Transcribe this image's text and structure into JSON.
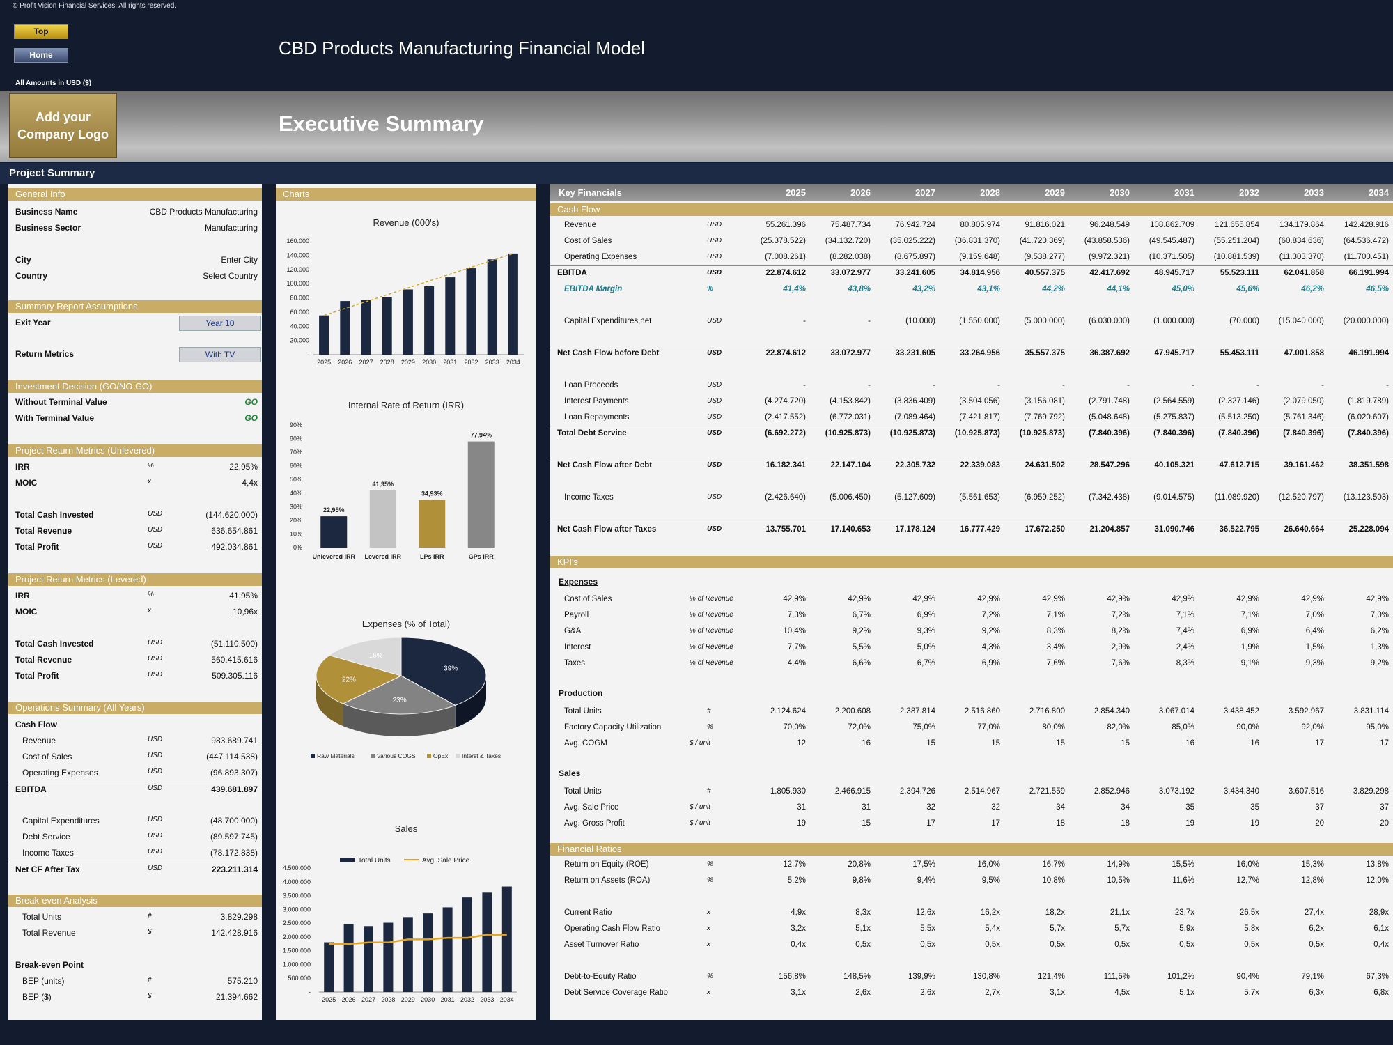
{
  "header": {
    "copyright": "© Profit Vision Financial Services. All rights reserved.",
    "top_btn": "Top",
    "home_btn": "Home",
    "model_title": "CBD Products Manufacturing Financial Model",
    "amounts": "All Amounts in  USD ($)",
    "logo": "Add your Company Logo",
    "exec_title": "Executive Summary",
    "project_summary": "Project Summary"
  },
  "general": {
    "title": "General Info",
    "rows": [
      {
        "label": "Business Name",
        "value": "CBD Products Manufacturing"
      },
      {
        "label": "Business Sector",
        "value": "Manufacturing"
      },
      {
        "label": "City",
        "value": "Enter City"
      },
      {
        "label": "Country",
        "value": "Select Country"
      }
    ]
  },
  "assump": {
    "title": "Summary  Report Assumptions",
    "exit_label": "Exit Year",
    "exit_value": "Year 10",
    "rm_label": "Return Metrics",
    "rm_value": "With TV"
  },
  "invest": {
    "title": "Investment Decision (GO/NO GO)",
    "rows": [
      {
        "label": "Without Terminal Value",
        "value": "GO"
      },
      {
        "label": "With Terminal Value",
        "value": "GO"
      }
    ]
  },
  "unlev": {
    "title": "Project Return Metrics (Unlevered)",
    "rows": [
      {
        "label": "IRR",
        "unit": "%",
        "value": "22,95%"
      },
      {
        "label": "MOIC",
        "unit": "x",
        "value": "4,4x"
      },
      {
        "label": "Total Cash Invested",
        "unit": "USD",
        "value": "(144.620.000)"
      },
      {
        "label": "Total Revenue",
        "unit": "USD",
        "value": "636.654.861"
      },
      {
        "label": "Total Profit",
        "unit": "USD",
        "value": "492.034.861"
      }
    ]
  },
  "lev": {
    "title": "Project Return Metrics (Levered)",
    "rows": [
      {
        "label": "IRR",
        "unit": "%",
        "value": "41,95%"
      },
      {
        "label": "MOIC",
        "unit": "x",
        "value": "10,96x"
      },
      {
        "label": "Total Cash Invested",
        "unit": "USD",
        "value": "(51.110.500)"
      },
      {
        "label": "Total Revenue",
        "unit": "USD",
        "value": "560.415.616"
      },
      {
        "label": "Total Profit",
        "unit": "USD",
        "value": "509.305.116"
      }
    ]
  },
  "ops": {
    "title": "Operations Summary (All Years)",
    "cashflow": "Cash Flow",
    "rows": [
      {
        "label": "Revenue",
        "unit": "USD",
        "value": "983.689.741"
      },
      {
        "label": "Cost of Sales",
        "unit": "USD",
        "value": "(447.114.538)"
      },
      {
        "label": "Operating Expenses",
        "unit": "USD",
        "value": "(96.893.307)"
      },
      {
        "label": "EBITDA",
        "unit": "USD",
        "value": "439.681.897"
      },
      {
        "label": "Capital Expenditures",
        "unit": "USD",
        "value": "(48.700.000)"
      },
      {
        "label": "Debt Service",
        "unit": "USD",
        "value": "(89.597.745)"
      },
      {
        "label": "Income Taxes",
        "unit": "USD",
        "value": "(78.172.838)"
      },
      {
        "label": "Net CF After Tax",
        "unit": "USD",
        "value": "223.211.314"
      }
    ]
  },
  "bea": {
    "title": "Break-even Analysis",
    "rows": [
      {
        "label": "Total Units",
        "unit": "#",
        "value": "3.829.298"
      },
      {
        "label": "Total Revenue",
        "unit": "$",
        "value": "142.428.916"
      }
    ],
    "bep_label": "Break-even Point",
    "bep": [
      {
        "label": "BEP (units)",
        "unit": "#",
        "value": "575.210"
      },
      {
        "label": "BEP ($)",
        "unit": "$",
        "value": "21.394.662"
      }
    ]
  },
  "charts": {
    "title": "Charts"
  },
  "chart_data": [
    {
      "type": "bar",
      "title": "Revenue (000's)",
      "categories": [
        "2025",
        "2026",
        "2027",
        "2028",
        "2029",
        "2030",
        "2031",
        "2032",
        "2033",
        "2034"
      ],
      "values": [
        55261,
        75488,
        76943,
        80806,
        91816,
        96249,
        108863,
        121656,
        134180,
        142429
      ],
      "y_ticks": [
        "160.000",
        "140.000",
        "120.000",
        "100.000",
        "80.000",
        "60.000",
        "40.000",
        "20.000",
        "-"
      ],
      "ylim": [
        0,
        160000
      ],
      "trendline": true,
      "color": "#1c2840"
    },
    {
      "type": "bar",
      "title": "Internal Rate of Return (IRR)",
      "categories": [
        "Unlevered IRR",
        "Levered IRR",
        "LPs IRR",
        "GPs IRR"
      ],
      "values": [
        22.95,
        41.95,
        34.93,
        77.94
      ],
      "labels": [
        "22,95%",
        "41,95%",
        "34,93%",
        "77,94%"
      ],
      "y_ticks": [
        "90%",
        "80%",
        "70%",
        "60%",
        "50%",
        "40%",
        "30%",
        "20%",
        "10%",
        "0%"
      ],
      "ylim": [
        0,
        90
      ],
      "colors": [
        "#1c2840",
        "#c3c3c3",
        "#b09139",
        "#878787"
      ]
    },
    {
      "type": "pie",
      "title": "Expenses (% of Total)",
      "values": [
        39,
        23,
        22,
        16
      ],
      "labels": [
        "39%",
        "23%",
        "22%",
        "16%"
      ],
      "legend": [
        "Raw Materials",
        "Various COGS",
        "OpEx",
        "Interst & Taxes"
      ],
      "colors": [
        "#1c2840",
        "#838383",
        "#b09139",
        "#d9d9d9"
      ]
    },
    {
      "type": "bar",
      "title": "Sales",
      "categories": [
        "2025",
        "2026",
        "2027",
        "2028",
        "2029",
        "2030",
        "2031",
        "2032",
        "2033",
        "2034"
      ],
      "series": [
        {
          "name": "Total Units",
          "values": [
            1805930,
            2466915,
            2394726,
            2514967,
            2721559,
            2852946,
            3073192,
            3434340,
            3607516,
            3829298
          ]
        },
        {
          "name": "Avg. Sale Price",
          "values": [
            31,
            31,
            32,
            32,
            34,
            34,
            35,
            35,
            37,
            37
          ]
        }
      ],
      "y_ticks": [
        "4.500.000",
        "4.000.000",
        "3.500.000",
        "3.000.000",
        "2.500.000",
        "2.000.000",
        "1.500.000",
        "1.000.000",
        "500.000",
        "-"
      ],
      "ylim": [
        0,
        4500000
      ]
    }
  ],
  "kf": {
    "title": "Key Financials",
    "years": [
      "2025",
      "2026",
      "2027",
      "2028",
      "2029",
      "2030",
      "2031",
      "2032",
      "2033",
      "2034"
    ],
    "cashflow_title": "Cash Flow",
    "kpi_title": "KPI's",
    "ratios_title": "Financial Ratios",
    "expenses_sub": "Expenses",
    "production_sub": "Production",
    "sales_sub": "Sales",
    "rows": [
      {
        "label": "Revenue",
        "unit": "USD",
        "vals": [
          "55.261.396",
          "75.487.734",
          "76.942.724",
          "80.805.974",
          "91.816.021",
          "96.248.549",
          "108.862.709",
          "121.655.854",
          "134.179.864",
          "142.428.916"
        ]
      },
      {
        "label": "Cost of Sales",
        "unit": "USD",
        "vals": [
          "(25.378.522)",
          "(34.132.720)",
          "(35.025.222)",
          "(36.831.370)",
          "(41.720.369)",
          "(43.858.536)",
          "(49.545.487)",
          "(55.251.204)",
          "(60.834.636)",
          "(64.536.472)"
        ]
      },
      {
        "label": "Operating Expenses",
        "unit": "USD",
        "vals": [
          "(7.008.261)",
          "(8.282.038)",
          "(8.675.897)",
          "(9.159.648)",
          "(9.538.277)",
          "(9.972.321)",
          "(10.371.505)",
          "(10.881.539)",
          "(11.303.370)",
          "(11.700.451)"
        ]
      },
      {
        "label": "EBITDA",
        "unit": "USD",
        "vals": [
          "22.874.612",
          "33.072.977",
          "33.241.605",
          "34.814.956",
          "40.557.375",
          "42.417.692",
          "48.945.717",
          "55.523.111",
          "62.041.858",
          "66.191.994"
        ]
      },
      {
        "label": "EBITDA Margin",
        "unit": "%",
        "vals": [
          "41,4%",
          "43,8%",
          "43,2%",
          "43,1%",
          "44,2%",
          "44,1%",
          "45,0%",
          "45,6%",
          "46,2%",
          "46,5%"
        ]
      },
      {
        "label": "Capital Expenditures,net",
        "unit": "USD",
        "vals": [
          "-",
          "-",
          "(10.000)",
          "(1.550.000)",
          "(5.000.000)",
          "(6.030.000)",
          "(1.000.000)",
          "(70.000)",
          "(15.040.000)",
          "(20.000.000)"
        ]
      },
      {
        "label": "Net Cash Flow before Debt",
        "unit": "USD",
        "vals": [
          "22.874.612",
          "33.072.977",
          "33.231.605",
          "33.264.956",
          "35.557.375",
          "36.387.692",
          "47.945.717",
          "55.453.111",
          "47.001.858",
          "46.191.994"
        ]
      },
      {
        "label": "Loan Proceeds",
        "unit": "USD",
        "vals": [
          "-",
          "-",
          "-",
          "-",
          "-",
          "-",
          "-",
          "-",
          "-",
          "-"
        ]
      },
      {
        "label": "Interest Payments",
        "unit": "USD",
        "vals": [
          "(4.274.720)",
          "(4.153.842)",
          "(3.836.409)",
          "(3.504.056)",
          "(3.156.081)",
          "(2.791.748)",
          "(2.564.559)",
          "(2.327.146)",
          "(2.079.050)",
          "(1.819.789)"
        ]
      },
      {
        "label": "Loan Repayments",
        "unit": "USD",
        "vals": [
          "(2.417.552)",
          "(6.772.031)",
          "(7.089.464)",
          "(7.421.817)",
          "(7.769.792)",
          "(5.048.648)",
          "(5.275.837)",
          "(5.513.250)",
          "(5.761.346)",
          "(6.020.607)"
        ]
      },
      {
        "label": "Total Debt Service",
        "unit": "USD",
        "vals": [
          "(6.692.272)",
          "(10.925.873)",
          "(10.925.873)",
          "(10.925.873)",
          "(10.925.873)",
          "(7.840.396)",
          "(7.840.396)",
          "(7.840.396)",
          "(7.840.396)",
          "(7.840.396)"
        ]
      },
      {
        "label": "Net Cash Flow after Debt",
        "unit": "USD",
        "vals": [
          "16.182.341",
          "22.147.104",
          "22.305.732",
          "22.339.083",
          "24.631.502",
          "28.547.296",
          "40.105.321",
          "47.612.715",
          "39.161.462",
          "38.351.598"
        ]
      },
      {
        "label": "Income Taxes",
        "unit": "USD",
        "vals": [
          "(2.426.640)",
          "(5.006.450)",
          "(5.127.609)",
          "(5.561.653)",
          "(6.959.252)",
          "(7.342.438)",
          "(9.014.575)",
          "(11.089.920)",
          "(12.520.797)",
          "(13.123.503)"
        ]
      },
      {
        "label": "Net Cash Flow after Taxes",
        "unit": "USD",
        "vals": [
          "13.755.701",
          "17.140.653",
          "17.178.124",
          "16.777.429",
          "17.672.250",
          "21.204.857",
          "31.090.746",
          "36.522.795",
          "26.640.664",
          "25.228.094"
        ]
      },
      {
        "label": "Cost of Sales",
        "unit": "% of Revenue",
        "vals": [
          "42,9%",
          "42,9%",
          "42,9%",
          "42,9%",
          "42,9%",
          "42,9%",
          "42,9%",
          "42,9%",
          "42,9%",
          "42,9%"
        ]
      },
      {
        "label": "Payroll",
        "unit": "% of Revenue",
        "vals": [
          "7,3%",
          "6,7%",
          "6,9%",
          "7,2%",
          "7,1%",
          "7,2%",
          "7,1%",
          "7,1%",
          "7,0%",
          "7,0%"
        ]
      },
      {
        "label": "G&A",
        "unit": "% of Revenue",
        "vals": [
          "10,4%",
          "9,2%",
          "9,3%",
          "9,2%",
          "8,3%",
          "8,2%",
          "7,4%",
          "6,9%",
          "6,4%",
          "6,2%"
        ]
      },
      {
        "label": "Interest",
        "unit": "% of Revenue",
        "vals": [
          "7,7%",
          "5,5%",
          "5,0%",
          "4,3%",
          "3,4%",
          "2,9%",
          "2,4%",
          "1,9%",
          "1,5%",
          "1,3%"
        ]
      },
      {
        "label": "Taxes",
        "unit": "% of Revenue",
        "vals": [
          "4,4%",
          "6,6%",
          "6,7%",
          "6,9%",
          "7,6%",
          "7,6%",
          "8,3%",
          "9,1%",
          "9,3%",
          "9,2%"
        ]
      },
      {
        "label": "Total Units",
        "unit": "#",
        "vals": [
          "2.124.624",
          "2.200.608",
          "2.387.814",
          "2.516.860",
          "2.716.800",
          "2.854.340",
          "3.067.014",
          "3.438.452",
          "3.592.967",
          "3.831.114"
        ]
      },
      {
        "label": "Factory Capacity Utilization",
        "unit": "%",
        "vals": [
          "70,0%",
          "72,0%",
          "75,0%",
          "77,0%",
          "80,0%",
          "82,0%",
          "85,0%",
          "90,0%",
          "92,0%",
          "95,0%"
        ]
      },
      {
        "label": "Avg. COGM",
        "unit": "$ / unit",
        "vals": [
          "12",
          "16",
          "15",
          "15",
          "15",
          "15",
          "16",
          "16",
          "17",
          "17"
        ]
      },
      {
        "label": "Total Units",
        "unit": "#",
        "vals": [
          "1.805.930",
          "2.466.915",
          "2.394.726",
          "2.514.967",
          "2.721.559",
          "2.852.946",
          "3.073.192",
          "3.434.340",
          "3.607.516",
          "3.829.298"
        ]
      },
      {
        "label": "Avg. Sale Price",
        "unit": "$ / unit",
        "vals": [
          "31",
          "31",
          "32",
          "32",
          "34",
          "34",
          "35",
          "35",
          "37",
          "37"
        ]
      },
      {
        "label": "Avg. Gross Profit",
        "unit": "$ / unit",
        "vals": [
          "19",
          "15",
          "17",
          "17",
          "18",
          "18",
          "19",
          "19",
          "20",
          "20"
        ]
      },
      {
        "label": "Return on Equity (ROE)",
        "unit": "%",
        "vals": [
          "12,7%",
          "20,8%",
          "17,5%",
          "16,0%",
          "16,7%",
          "14,9%",
          "15,5%",
          "16,0%",
          "15,3%",
          "13,8%"
        ]
      },
      {
        "label": "Return on Assets (ROA)",
        "unit": "%",
        "vals": [
          "5,2%",
          "9,8%",
          "9,4%",
          "9,5%",
          "10,8%",
          "10,5%",
          "11,6%",
          "12,7%",
          "12,8%",
          "12,0%"
        ]
      },
      {
        "label": "Current Ratio",
        "unit": "x",
        "vals": [
          "4,9x",
          "8,3x",
          "12,6x",
          "16,2x",
          "18,2x",
          "21,1x",
          "23,7x",
          "26,5x",
          "27,4x",
          "28,9x"
        ]
      },
      {
        "label": "Operating Cash Flow Ratio",
        "unit": "x",
        "vals": [
          "3,2x",
          "5,1x",
          "5,5x",
          "5,4x",
          "5,7x",
          "5,7x",
          "5,9x",
          "5,8x",
          "6,2x",
          "6,1x"
        ]
      },
      {
        "label": "Asset Turnover Ratio",
        "unit": "x",
        "vals": [
          "0,4x",
          "0,5x",
          "0,5x",
          "0,5x",
          "0,5x",
          "0,5x",
          "0,5x",
          "0,5x",
          "0,5x",
          "0,4x"
        ]
      },
      {
        "label": "Debt-to-Equity Ratio",
        "unit": "%",
        "vals": [
          "156,8%",
          "148,5%",
          "139,9%",
          "130,8%",
          "121,4%",
          "111,5%",
          "101,2%",
          "90,4%",
          "79,1%",
          "67,3%"
        ]
      },
      {
        "label": "Debt Service Coverage Ratio",
        "unit": "x",
        "vals": [
          "3,1x",
          "2,6x",
          "2,6x",
          "2,7x",
          "3,1x",
          "4,5x",
          "5,1x",
          "5,7x",
          "6,3x",
          "6,8x"
        ]
      }
    ]
  }
}
